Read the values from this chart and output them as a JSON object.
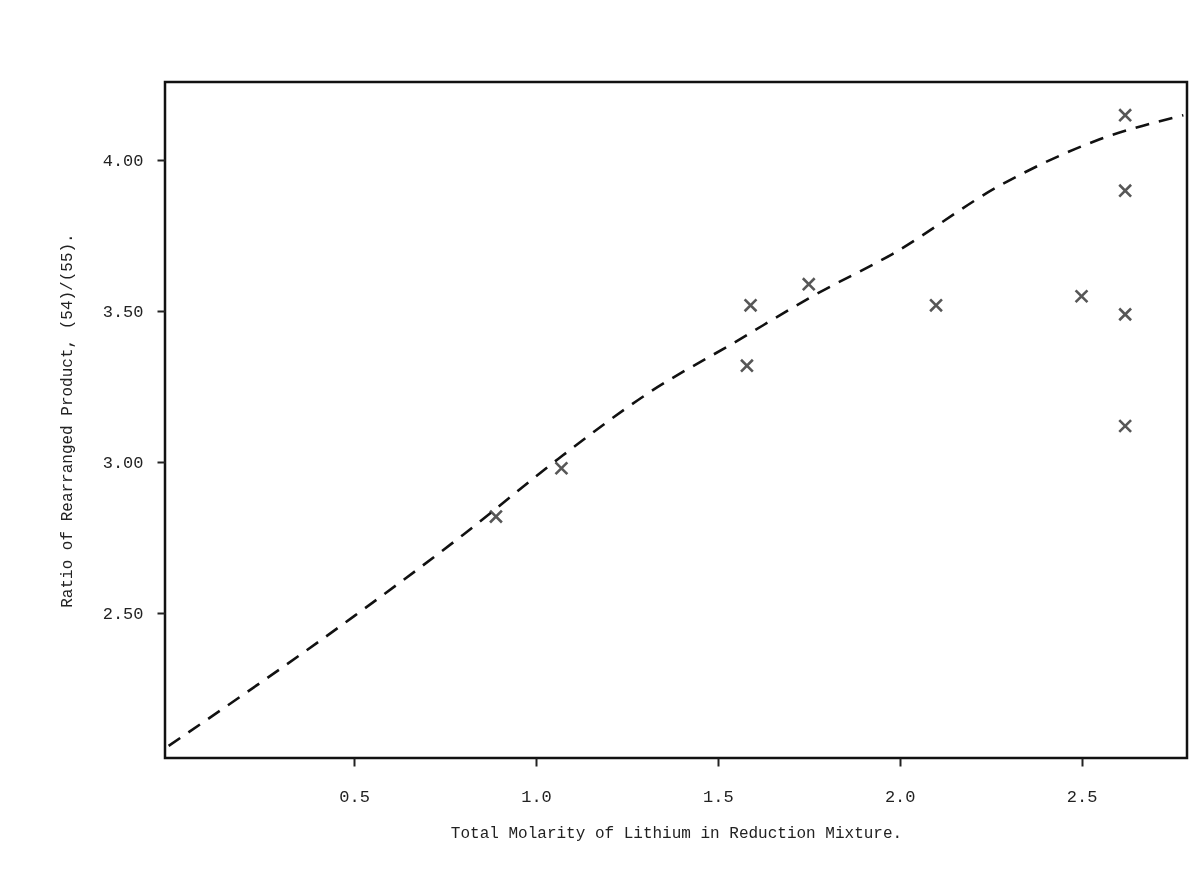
{
  "chart_data": {
    "type": "scatter",
    "xlabel": "Total Molarity of Lithium in Reduction Mixture.",
    "ylabel": "Ratio of Rearranged Product, (54)/(55).",
    "xlim": [
      -0.02,
      2.79
    ],
    "xticks": [
      {
        "value": 0.5,
        "label": "0.5"
      },
      {
        "value": 1.0,
        "label": "1.0"
      },
      {
        "value": 1.5,
        "label": "1.5"
      },
      {
        "value": 2.0,
        "label": "2.0"
      },
      {
        "value": 2.5,
        "label": "2.5"
      }
    ],
    "ylim": [
      2.02,
      4.26
    ],
    "yticks": [
      {
        "value": 2.5,
        "label": "2.50"
      },
      {
        "value": 3.0,
        "label": "3.00"
      },
      {
        "value": 3.5,
        "label": "3.50"
      },
      {
        "value": 4.0,
        "label": "4.00"
      }
    ],
    "grid": false,
    "series": [
      {
        "color": "#111111",
        "marker": "cross",
        "x": [
          0.89,
          1.07,
          1.58,
          1.59,
          1.75,
          2.1,
          2.5,
          2.62,
          2.62,
          2.62,
          2.62
        ],
        "values": [
          2.82,
          2.98,
          3.32,
          3.52,
          3.59,
          3.52,
          3.55,
          4.15,
          3.9,
          3.49,
          3.12
        ]
      },
      {
        "type": "line",
        "color": "#111111",
        "marker": "none",
        "line_style": "dashed",
        "x": [
          -0.01,
          0.5,
          0.8,
          1.06,
          1.31,
          1.55,
          1.76,
          1.98,
          2.28,
          2.55,
          2.78
        ],
        "values": [
          2.06,
          2.49,
          2.76,
          3.01,
          3.23,
          3.4,
          3.55,
          3.69,
          3.92,
          4.07,
          4.15
        ]
      }
    ]
  }
}
